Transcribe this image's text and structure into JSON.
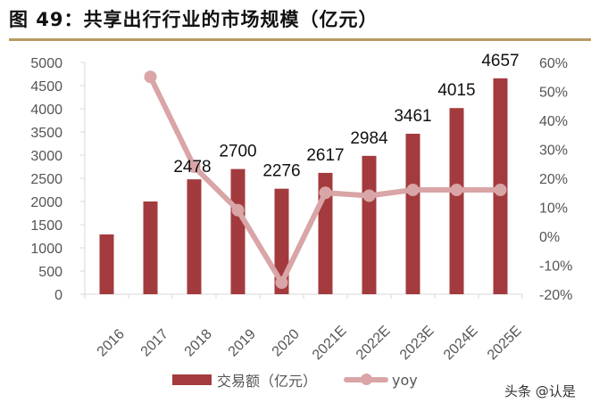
{
  "title": "图 49：共享出行行业的市场规模（亿元）",
  "colors": {
    "bar": "#A33B3E",
    "line": "#D9A5A6",
    "rule": "#B89A62"
  },
  "legend": {
    "bar_label": "交易额（亿元）",
    "line_label": "yoy"
  },
  "watermark": "头条 @认是",
  "chart_data": {
    "type": "bar+line",
    "title": "共享出行行业的市场规模（亿元）",
    "categories": [
      "2016",
      "2017",
      "2018",
      "2019",
      "2020",
      "2021E",
      "2022E",
      "2023E",
      "2024E",
      "2025E"
    ],
    "series": [
      {
        "name": "交易额（亿元）",
        "type": "bar",
        "axis": "left",
        "values": [
          1290,
          2000,
          2478,
          2700,
          2276,
          2617,
          2984,
          3461,
          4015,
          4657
        ],
        "data_labels": [
          null,
          null,
          "2478",
          "2700",
          "2276",
          "2617",
          "2984",
          "3461",
          "4015",
          "4657"
        ]
      },
      {
        "name": "yoy",
        "type": "line",
        "axis": "right",
        "values": [
          null,
          55,
          24,
          9,
          -16,
          15,
          14,
          16,
          16,
          16
        ]
      }
    ],
    "left_axis": {
      "min": 0,
      "max": 5000,
      "step": 500,
      "ticks": [
        "0",
        "500",
        "1000",
        "1500",
        "2000",
        "2500",
        "3000",
        "3500",
        "4000",
        "4500",
        "5000"
      ]
    },
    "right_axis": {
      "min": -20,
      "max": 60,
      "step": 10,
      "ticks": [
        "-20%",
        "-10%",
        "0%",
        "10%",
        "20%",
        "30%",
        "40%",
        "50%",
        "60%"
      ]
    },
    "xlabel": "",
    "ylabel": "",
    "grid": false,
    "legend_position": "bottom"
  }
}
